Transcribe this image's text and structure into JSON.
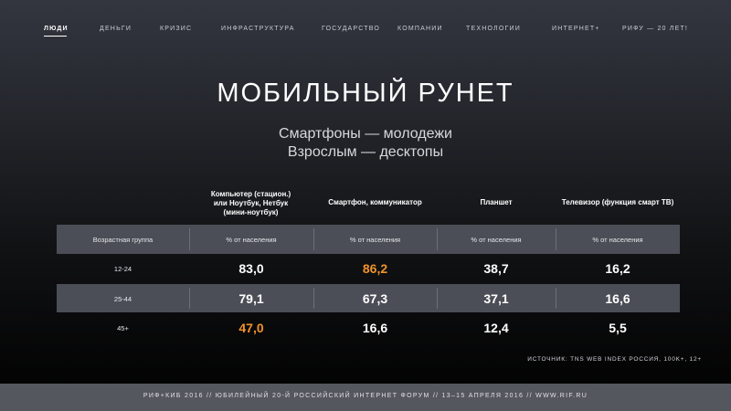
{
  "nav": {
    "items": [
      {
        "label": "люди",
        "active": true
      },
      {
        "label": "деньги"
      },
      {
        "label": "кризис"
      },
      {
        "label": "инфраструктура"
      },
      {
        "label": "государство"
      },
      {
        "label": "компании"
      },
      {
        "label": "технологии"
      },
      {
        "label": "интернет+"
      },
      {
        "label": "РИФУ — 20 лет!"
      }
    ]
  },
  "title": "МОБИЛЬНЫЙ РУНЕТ",
  "subtitle": [
    "Смартфоны — молодежи",
    "Взрослым — десктопы"
  ],
  "table": {
    "columns": [
      "Компьютер (стацион.)\nили Ноутбук, Нетбук\n(мини-ноутбук)",
      "Смартфон, коммуникатор",
      "Планшет",
      "Телевизор (функция смарт ТВ)"
    ],
    "header_row": [
      "Возрастная группа",
      "% от населения",
      "% от населения",
      "% от населения",
      "% от населения"
    ],
    "rows": [
      {
        "group": "12-24",
        "values": [
          "83,0",
          "86,2",
          "38,7",
          "16,2"
        ],
        "highlight": [
          false,
          true,
          false,
          false
        ]
      },
      {
        "group": "25-44",
        "values": [
          "79,1",
          "67,3",
          "37,1",
          "16,6"
        ],
        "highlight": [
          false,
          false,
          false,
          false
        ]
      },
      {
        "group": "45+",
        "values": [
          "47,0",
          "16,6",
          "12,4",
          "5,5"
        ],
        "highlight": [
          true,
          false,
          false,
          false
        ]
      }
    ]
  },
  "source": "Источник: TNS Web Index Россия, 100k+, 12+",
  "footer": "РИФ+КИБ 2016 // Юбилейный 20-й Российский Интернет Форум // 13–15 апреля 2016 // www.rif.ru",
  "colors": {
    "accent": "#f0932b",
    "band": "#4b4e57",
    "footer": "#55575f"
  }
}
